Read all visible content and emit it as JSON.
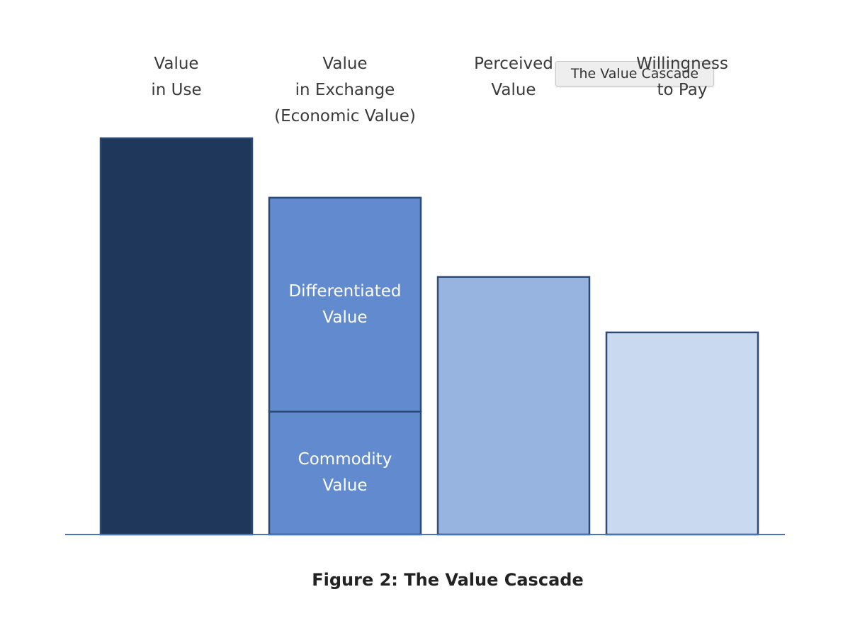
{
  "chart_data": {
    "type": "bar",
    "title": "Figure 2: The Value Cascade",
    "tooltip": "The Value Cascade",
    "categories": [
      "Value\nin Use",
      "Value\nin Exchange\n(Economic Value)",
      "Perceived\nValue",
      "Willingness\nto Pay"
    ],
    "values": [
      100,
      null,
      65,
      51
    ],
    "colors": [
      "#1f375a",
      "#628bcf",
      "#97b4e0",
      "#c9d9ef"
    ],
    "segments": [
      {
        "name": "Commodity\nValue",
        "value": 31
      },
      {
        "name": "Differentiated\nValue",
        "value": 54
      }
    ],
    "ylim": [
      0,
      100
    ]
  }
}
